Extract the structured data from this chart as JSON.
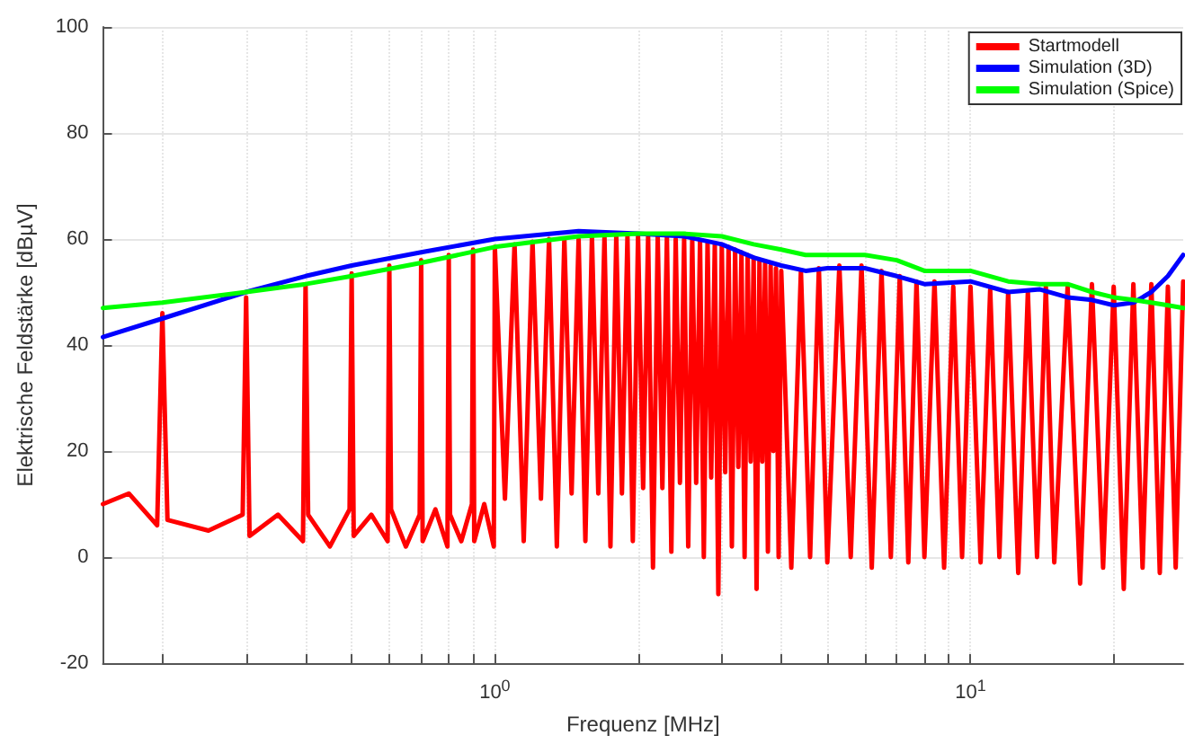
{
  "chart_data": {
    "type": "line",
    "xlabel": "Frequenz [MHz]",
    "ylabel": "Elektrische Feldstärke [dBµV]",
    "log": "x",
    "grid": true,
    "legend": "top right",
    "marker": "none",
    "line_style": "solid",
    "xlim": [
      0.15,
      28
    ],
    "ylim": [
      -20,
      100
    ],
    "xticks": [
      {
        "value": 0.2,
        "label": null
      },
      {
        "value": 0.3,
        "label": null
      },
      {
        "value": 0.4,
        "label": null
      },
      {
        "value": 0.5,
        "label": null
      },
      {
        "value": 0.6,
        "label": null
      },
      {
        "value": 0.7,
        "label": null
      },
      {
        "value": 0.8,
        "label": null
      },
      {
        "value": 0.9,
        "label": null
      },
      {
        "value": 1,
        "label": "10$^{0}$"
      },
      {
        "value": 2,
        "label": null
      },
      {
        "value": 3,
        "label": null
      },
      {
        "value": 4,
        "label": null
      },
      {
        "value": 5,
        "label": null
      },
      {
        "value": 6,
        "label": null
      },
      {
        "value": 7,
        "label": null
      },
      {
        "value": 8,
        "label": null
      },
      {
        "value": 9,
        "label": null
      },
      {
        "value": 10,
        "label": "10$^{1}$"
      },
      {
        "value": 20,
        "label": null
      }
    ],
    "yticks": [
      -20,
      0,
      20,
      40,
      60,
      80,
      100
    ],
    "series": [
      {
        "name": "Startmodell",
        "color": "#ff0000",
        "x": [
          0.15,
          0.17,
          0.195,
          0.2,
          0.205,
          0.25,
          0.295,
          0.3,
          0.305,
          0.35,
          0.395,
          0.4,
          0.405,
          0.45,
          0.495,
          0.5,
          0.505,
          0.55,
          0.595,
          0.6,
          0.605,
          0.65,
          0.695,
          0.7,
          0.705,
          0.75,
          0.795,
          0.8,
          0.805,
          0.85,
          0.895,
          0.9,
          0.905,
          0.95,
          0.995,
          1.0,
          1.05,
          1.1,
          1.15,
          1.2,
          1.25,
          1.3,
          1.35,
          1.4,
          1.45,
          1.5,
          1.55,
          1.6,
          1.65,
          1.7,
          1.75,
          1.8,
          1.85,
          1.9,
          1.95,
          2.0,
          2.05,
          2.1,
          2.15,
          2.2,
          2.25,
          2.3,
          2.35,
          2.4,
          2.45,
          2.5,
          2.55,
          2.6,
          2.65,
          2.7,
          2.75,
          2.8,
          2.85,
          2.9,
          2.95,
          3.0,
          3.05,
          3.1,
          3.15,
          3.2,
          3.25,
          3.3,
          3.35,
          3.4,
          3.45,
          3.5,
          3.55,
          3.6,
          3.65,
          3.7,
          3.75,
          3.8,
          3.85,
          3.9,
          3.95,
          4.0,
          4.2,
          4.4,
          4.6,
          4.8,
          5.0,
          5.3,
          5.6,
          5.9,
          6.2,
          6.5,
          6.8,
          7.1,
          7.4,
          7.7,
          8.0,
          8.4,
          8.8,
          9.2,
          9.6,
          10,
          10.5,
          11,
          11.5,
          12,
          12.6,
          13.2,
          13.8,
          14.4,
          15,
          16,
          17,
          18,
          19,
          20,
          21,
          22,
          23,
          24,
          25,
          26,
          27,
          28
        ],
        "values": [
          10,
          12,
          6,
          46,
          7,
          5,
          8,
          49,
          4,
          8,
          3,
          51.5,
          8,
          2,
          9,
          53.5,
          4,
          8,
          3,
          55,
          9,
          2,
          8,
          56,
          3,
          9,
          2,
          57,
          8,
          3,
          10,
          58,
          3,
          10,
          2,
          58.5,
          11,
          59,
          3,
          59.5,
          11,
          60,
          2,
          60,
          12,
          60,
          3,
          60.5,
          12,
          60.5,
          2,
          60.5,
          12,
          60.5,
          3,
          60.5,
          13,
          60.5,
          -2,
          60.5,
          13,
          60.5,
          1,
          60,
          14,
          60,
          2,
          60,
          14,
          59.5,
          0,
          59.5,
          15,
          59,
          -7,
          59,
          16,
          58.5,
          2,
          58,
          17,
          57.5,
          0,
          57,
          18,
          56.5,
          -6,
          56,
          18,
          55.5,
          1,
          55,
          20,
          54.5,
          0,
          54,
          -2,
          54,
          0,
          54.5,
          -1,
          55,
          0,
          55,
          -2,
          54,
          0,
          53,
          -1,
          52,
          0,
          52,
          -2,
          51,
          0,
          51,
          -1,
          50.5,
          0,
          50,
          -3,
          50,
          0,
          51,
          -1,
          51,
          -5,
          51.5,
          -2,
          51,
          -6,
          51.5,
          -2,
          51.5,
          -3,
          51,
          -2,
          52
        ]
      },
      {
        "name": "Simulation (3D)",
        "color": "#0000ff",
        "x": [
          0.15,
          0.2,
          0.3,
          0.4,
          0.5,
          0.7,
          1,
          1.5,
          2,
          2.5,
          3,
          3.5,
          4,
          4.5,
          5,
          6,
          7,
          8,
          10,
          12,
          14,
          16,
          18,
          20,
          22,
          24,
          26,
          28
        ],
        "values": [
          41.5,
          45,
          50,
          53,
          55,
          57.5,
          60,
          61.5,
          61,
          60.5,
          59,
          56.5,
          55,
          54,
          54.5,
          54.5,
          53,
          51.5,
          52,
          50,
          50.5,
          49,
          48.5,
          47.5,
          48,
          50,
          53,
          57
        ]
      },
      {
        "name": "Simulation (Spice)",
        "color": "#00ff00",
        "x": [
          0.15,
          0.2,
          0.3,
          0.4,
          0.5,
          0.7,
          1,
          1.5,
          2,
          2.5,
          3,
          3.5,
          4,
          4.5,
          5,
          6,
          7,
          8,
          10,
          12,
          14,
          16,
          18,
          20,
          22,
          24,
          26,
          28
        ],
        "values": [
          47,
          48,
          50,
          51.5,
          53,
          55.5,
          58.5,
          60.5,
          61,
          61,
          60.5,
          59,
          58,
          57,
          57,
          57,
          56,
          54,
          54,
          52,
          51.5,
          51.5,
          50,
          49,
          48.5,
          48,
          47.5,
          47
        ]
      }
    ]
  }
}
